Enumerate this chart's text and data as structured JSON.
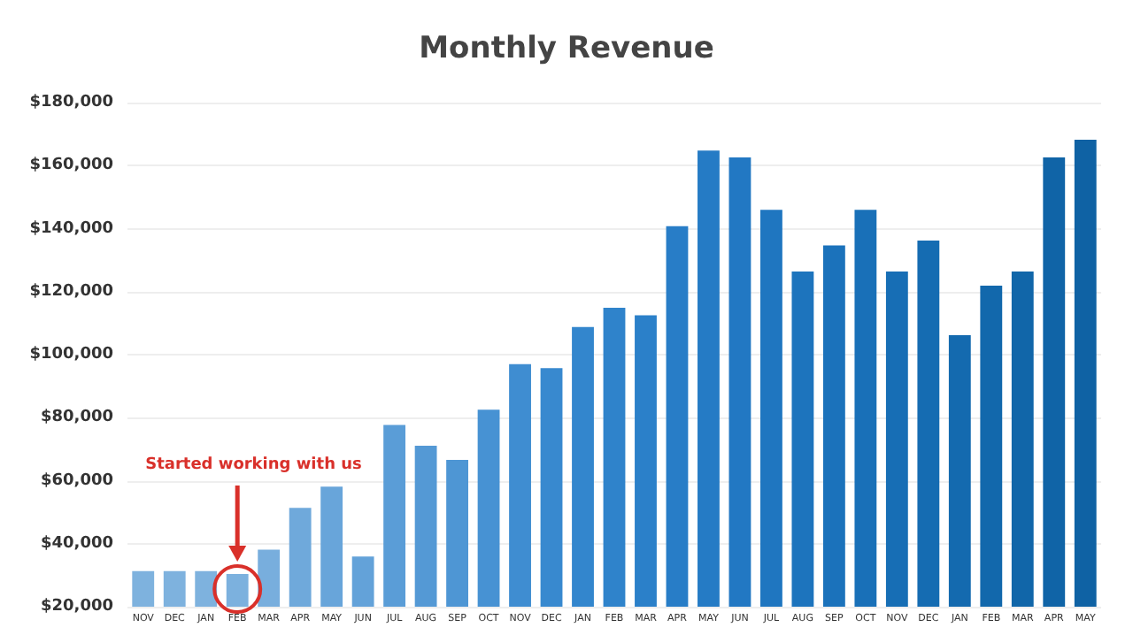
{
  "chart_data": {
    "type": "bar",
    "title": "Monthly Revenue",
    "categories": [
      "NOV",
      "DEC",
      "JAN",
      "FEB",
      "MAR",
      "APR",
      "MAY",
      "JUN",
      "JUL",
      "AUG",
      "SEP",
      "OCT",
      "NOV",
      "DEC",
      "JAN",
      "FEB",
      "MAR",
      "APR",
      "MAY",
      "JUN",
      "JUL",
      "AUG",
      "SEP",
      "OCT",
      "NOV",
      "DEC",
      "JAN",
      "FEB",
      "MAR",
      "APR",
      "MAY"
    ],
    "values": [
      31300,
      31300,
      31300,
      30400,
      38100,
      51400,
      58100,
      35900,
      77700,
      71100,
      66600,
      82500,
      97000,
      95700,
      108800,
      114900,
      112500,
      140800,
      164800,
      162600,
      146000,
      126400,
      134700,
      146000,
      126400,
      136200,
      106200,
      121900,
      126400,
      162600,
      168200
    ],
    "colors": [
      "#7eb2de",
      "#7eb2de",
      "#7eb2de",
      "#7cb1de",
      "#78aedd",
      "#6fa9db",
      "#68a5da",
      "#63a2d9",
      "#5a9dd7",
      "#5499d5",
      "#4e96d4",
      "#4792d3",
      "#3f8dd1",
      "#3889cf",
      "#3386cd",
      "#2f83cb",
      "#2b80c9",
      "#287dc7",
      "#257bc5",
      "#2278c3",
      "#1f76c0",
      "#1d74bd",
      "#1b72bb",
      "#1970b8",
      "#176eb5",
      "#156cb2",
      "#146aaf",
      "#1268ac",
      "#1166a9",
      "#1064a7",
      "#0f62a4"
    ],
    "ylim": [
      20000,
      180000
    ],
    "yticks": [
      {
        "value": 20000,
        "label": "$20,000"
      },
      {
        "value": 40000,
        "label": "$40,000"
      },
      {
        "value": 60000,
        "label": "$60,000"
      },
      {
        "value": 80000,
        "label": "$80,000"
      },
      {
        "value": 100000,
        "label": "$100,000"
      },
      {
        "value": 120000,
        "label": "$120,000"
      },
      {
        "value": 140000,
        "label": "$140,000"
      },
      {
        "value": 160000,
        "label": "$160,000"
      },
      {
        "value": 180000,
        "label": "$180,000"
      }
    ],
    "annotations": [
      "Started working with us"
    ],
    "grid": "y"
  }
}
